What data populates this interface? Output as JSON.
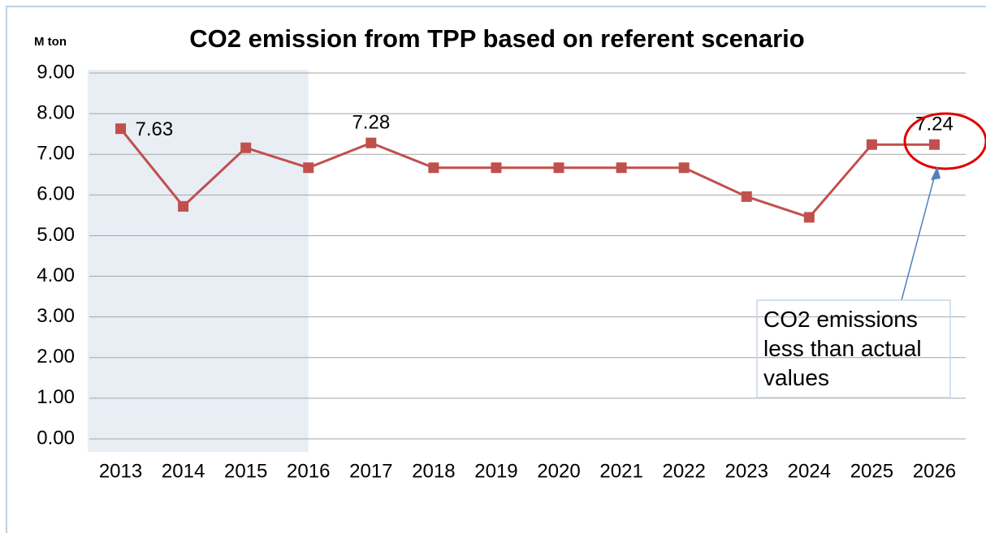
{
  "chart_data": {
    "type": "line",
    "title": "CO2 emission from TPP based on referent scenario",
    "y_label": "M ton",
    "categories": [
      "2013",
      "2014",
      "2015",
      "2016",
      "2017",
      "2018",
      "2019",
      "2020",
      "2021",
      "2022",
      "2023",
      "2024",
      "2025",
      "2026"
    ],
    "series": [
      {
        "name": "CO2 emission",
        "color": "#c0504d",
        "values": [
          7.63,
          5.72,
          7.16,
          6.67,
          7.28,
          6.67,
          6.67,
          6.67,
          6.67,
          6.67,
          5.96,
          5.45,
          7.24,
          7.24
        ],
        "value_labels": [
          "7.63",
          null,
          null,
          null,
          "7.28",
          null,
          null,
          null,
          null,
          null,
          null,
          null,
          null,
          "7.24"
        ]
      }
    ],
    "ylim": [
      0,
      9
    ],
    "yticks": [
      {
        "value": 0,
        "label": "0.00"
      },
      {
        "value": 1,
        "label": "1.00"
      },
      {
        "value": 2,
        "label": "2.00"
      },
      {
        "value": 3,
        "label": "3.00"
      },
      {
        "value": 4,
        "label": "4.00"
      },
      {
        "value": 5,
        "label": "5.00"
      },
      {
        "value": 6,
        "label": "6.00"
      },
      {
        "value": 7,
        "label": "7.00"
      },
      {
        "value": 8,
        "label": "8.00"
      },
      {
        "value": 9,
        "label": "9.00"
      }
    ],
    "grid": true,
    "highlight_range": [
      0,
      3
    ],
    "highlight_color": "#e9edf4",
    "annotation": "CO2 emissions less than actual values"
  }
}
